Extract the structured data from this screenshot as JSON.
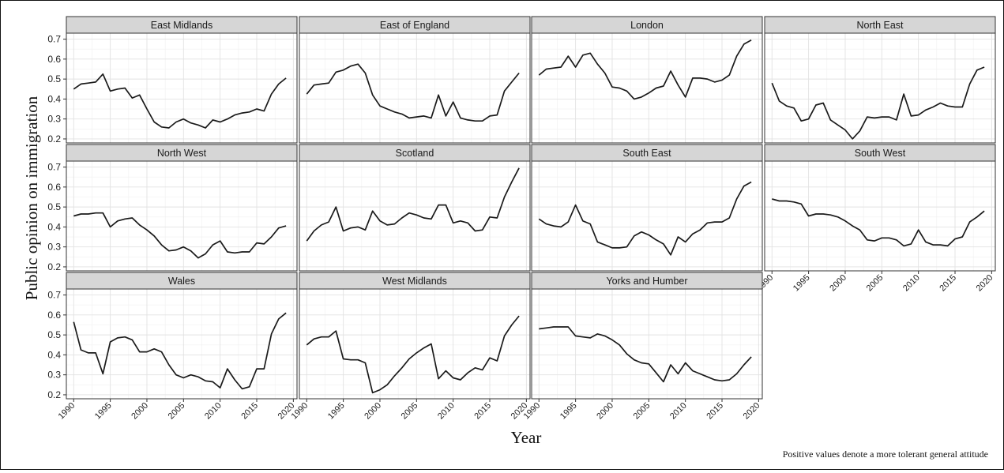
{
  "figure": {
    "ylabel": "Public opinion on immigration",
    "xlabel": "Year",
    "note": "Positive values denote a more tolerant general attitude"
  },
  "chart_data": {
    "type": "line",
    "xlabel": "Year",
    "ylabel": "Public opinion on immigration",
    "note": "Positive values denote a more tolerant general attitude",
    "xlim": [
      1989,
      2020.5
    ],
    "ylim": [
      0.18,
      0.73
    ],
    "xticks": [
      "1990",
      "1995",
      "2000",
      "2005",
      "2010",
      "2015",
      "2020"
    ],
    "yticks": [
      "0.2",
      "0.3",
      "0.4",
      "0.5",
      "0.6",
      "0.7"
    ],
    "grid": true,
    "years": [
      1990,
      1991,
      1992,
      1993,
      1994,
      1995,
      1996,
      1997,
      1998,
      1999,
      2000,
      2001,
      2002,
      2003,
      2004,
      2005,
      2006,
      2007,
      2008,
      2009,
      2010,
      2011,
      2012,
      2013,
      2014,
      2015,
      2016,
      2017,
      2018,
      2019
    ],
    "panels": [
      {
        "name": "East Midlands",
        "values": [
          0.45,
          0.475,
          0.48,
          0.485,
          0.525,
          0.44,
          0.45,
          0.455,
          0.405,
          0.42,
          0.35,
          0.285,
          0.26,
          0.255,
          0.285,
          0.3,
          0.28,
          0.27,
          0.255,
          0.295,
          0.285,
          0.3,
          0.32,
          0.33,
          0.335,
          0.35,
          0.34,
          0.425,
          0.475,
          0.505
        ]
      },
      {
        "name": "East of England",
        "values": [
          0.425,
          0.47,
          0.475,
          0.48,
          0.535,
          0.545,
          0.565,
          0.575,
          0.53,
          0.42,
          0.365,
          0.35,
          0.335,
          0.325,
          0.305,
          0.31,
          0.315,
          0.305,
          0.42,
          0.315,
          0.385,
          0.305,
          0.295,
          0.29,
          0.29,
          0.315,
          0.32,
          0.44,
          0.485,
          0.53
        ]
      },
      {
        "name": "London",
        "values": [
          0.52,
          0.55,
          0.555,
          0.56,
          0.615,
          0.56,
          0.62,
          0.63,
          0.575,
          0.53,
          0.46,
          0.455,
          0.44,
          0.4,
          0.41,
          0.43,
          0.455,
          0.465,
          0.54,
          0.47,
          0.41,
          0.505,
          0.505,
          0.5,
          0.485,
          0.495,
          0.52,
          0.615,
          0.675,
          0.695
        ]
      },
      {
        "name": "North East",
        "values": [
          0.48,
          0.39,
          0.365,
          0.355,
          0.29,
          0.3,
          0.37,
          0.38,
          0.295,
          0.27,
          0.245,
          0.2,
          0.24,
          0.31,
          0.305,
          0.31,
          0.31,
          0.295,
          0.425,
          0.315,
          0.32,
          0.345,
          0.36,
          0.38,
          0.365,
          0.36,
          0.36,
          0.475,
          0.545,
          0.56
        ]
      },
      {
        "name": "North West",
        "values": [
          0.455,
          0.465,
          0.465,
          0.47,
          0.47,
          0.4,
          0.43,
          0.44,
          0.445,
          0.41,
          0.385,
          0.355,
          0.31,
          0.28,
          0.285,
          0.3,
          0.28,
          0.245,
          0.265,
          0.31,
          0.33,
          0.275,
          0.27,
          0.275,
          0.275,
          0.32,
          0.315,
          0.35,
          0.395,
          0.405
        ]
      },
      {
        "name": "Scotland",
        "values": [
          0.33,
          0.38,
          0.41,
          0.425,
          0.5,
          0.38,
          0.395,
          0.4,
          0.385,
          0.48,
          0.43,
          0.41,
          0.415,
          0.445,
          0.47,
          0.46,
          0.445,
          0.44,
          0.51,
          0.51,
          0.42,
          0.43,
          0.42,
          0.38,
          0.385,
          0.45,
          0.445,
          0.55,
          0.625,
          0.695
        ]
      },
      {
        "name": "South East",
        "values": [
          0.44,
          0.415,
          0.405,
          0.4,
          0.425,
          0.51,
          0.43,
          0.415,
          0.325,
          0.31,
          0.295,
          0.295,
          0.3,
          0.355,
          0.375,
          0.36,
          0.335,
          0.315,
          0.26,
          0.35,
          0.325,
          0.365,
          0.385,
          0.42,
          0.425,
          0.425,
          0.445,
          0.54,
          0.605,
          0.625
        ]
      },
      {
        "name": "South West",
        "values": [
          0.54,
          0.53,
          0.53,
          0.525,
          0.515,
          0.455,
          0.465,
          0.465,
          0.46,
          0.45,
          0.43,
          0.405,
          0.385,
          0.335,
          0.33,
          0.345,
          0.345,
          0.335,
          0.305,
          0.315,
          0.385,
          0.325,
          0.31,
          0.31,
          0.305,
          0.34,
          0.35,
          0.425,
          0.45,
          0.48
        ]
      },
      {
        "name": "Wales",
        "values": [
          0.565,
          0.425,
          0.41,
          0.41,
          0.305,
          0.465,
          0.485,
          0.49,
          0.475,
          0.415,
          0.415,
          0.43,
          0.415,
          0.35,
          0.3,
          0.285,
          0.3,
          0.29,
          0.27,
          0.265,
          0.235,
          0.33,
          0.275,
          0.23,
          0.24,
          0.33,
          0.33,
          0.505,
          0.58,
          0.61
        ]
      },
      {
        "name": "West Midlands",
        "values": [
          0.45,
          0.48,
          0.49,
          0.49,
          0.52,
          0.38,
          0.375,
          0.375,
          0.36,
          0.21,
          0.225,
          0.25,
          0.295,
          0.335,
          0.38,
          0.41,
          0.435,
          0.455,
          0.28,
          0.32,
          0.285,
          0.275,
          0.31,
          0.335,
          0.325,
          0.385,
          0.37,
          0.495,
          0.55,
          0.595
        ]
      },
      {
        "name": "Yorks and Humber",
        "values": [
          0.53,
          0.535,
          0.54,
          0.54,
          0.54,
          0.495,
          0.49,
          0.485,
          0.505,
          0.495,
          0.475,
          0.45,
          0.405,
          0.375,
          0.36,
          0.355,
          0.31,
          0.265,
          0.35,
          0.305,
          0.36,
          0.32,
          0.305,
          0.29,
          0.275,
          0.27,
          0.275,
          0.305,
          0.35,
          0.39
        ]
      }
    ]
  }
}
